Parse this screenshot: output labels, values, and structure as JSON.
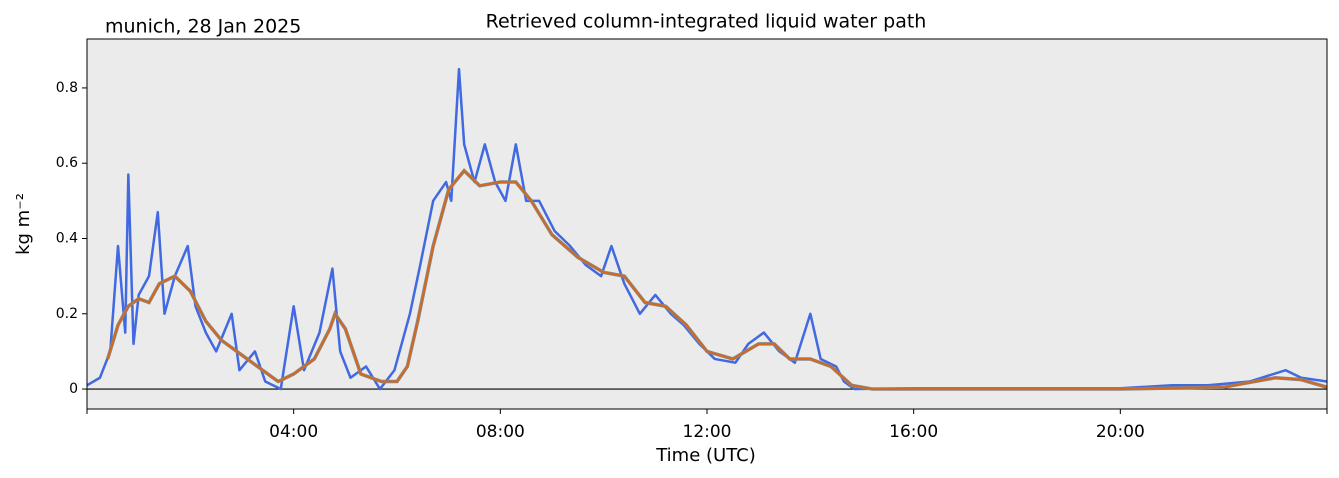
{
  "chart_data": {
    "type": "line",
    "title": "Retrieved column-integrated liquid water path",
    "annotation": "munich, 28 Jan 2025",
    "xlabel": "Time (UTC)",
    "ylabel": "kg m⁻²",
    "xlim": [
      0,
      24
    ],
    "xticks": [
      {
        "value": 0,
        "label": null
      },
      {
        "value": 4,
        "label": "04:00"
      },
      {
        "value": 8,
        "label": "08:00"
      },
      {
        "value": 12,
        "label": "12:00"
      },
      {
        "value": 16,
        "label": "16:00"
      },
      {
        "value": 20,
        "label": "20:00"
      },
      {
        "value": 24,
        "label": null
      }
    ],
    "ylim": [
      -0.053,
      0.93
    ],
    "yticks": [
      0.0,
      0.2,
      0.4,
      0.6,
      0.8
    ],
    "hline": 0,
    "background": "#ebebeb",
    "series": [
      {
        "color": "#4169e1",
        "x": [
          0,
          0.25,
          0.45,
          0.6,
          0.74,
          0.8,
          0.9,
          1.0,
          1.2,
          1.37,
          1.5,
          1.7,
          1.95,
          2.1,
          2.3,
          2.5,
          2.8,
          2.95,
          3.25,
          3.45,
          3.75,
          4.0,
          4.2,
          4.5,
          4.75,
          4.9,
          5.1,
          5.4,
          5.67,
          5.95,
          6.25,
          6.45,
          6.7,
          6.95,
          7.05,
          7.2,
          7.3,
          7.5,
          7.7,
          7.9,
          8.1,
          8.3,
          8.5,
          8.75,
          9.05,
          9.35,
          9.65,
          9.95,
          10.15,
          10.4,
          10.7,
          11.0,
          11.3,
          11.55,
          11.85,
          12.15,
          12.55,
          12.8,
          13.1,
          13.4,
          13.7,
          14.0,
          14.2,
          14.5,
          14.65,
          14.85,
          16,
          18,
          20,
          21.0,
          21.7,
          22.5,
          23.2,
          23.5,
          24.0
        ],
        "values": [
          0.01,
          0.03,
          0.1,
          0.38,
          0.15,
          0.57,
          0.12,
          0.25,
          0.3,
          0.47,
          0.2,
          0.3,
          0.38,
          0.22,
          0.15,
          0.1,
          0.2,
          0.05,
          0.1,
          0.02,
          0.0,
          0.22,
          0.05,
          0.15,
          0.32,
          0.1,
          0.03,
          0.06,
          0.0,
          0.05,
          0.2,
          0.33,
          0.5,
          0.55,
          0.5,
          0.85,
          0.65,
          0.55,
          0.65,
          0.55,
          0.5,
          0.65,
          0.5,
          0.5,
          0.42,
          0.38,
          0.33,
          0.3,
          0.38,
          0.28,
          0.2,
          0.25,
          0.2,
          0.17,
          0.12,
          0.08,
          0.07,
          0.12,
          0.15,
          0.1,
          0.07,
          0.2,
          0.08,
          0.06,
          0.02,
          0.0,
          0.002,
          0.002,
          0.002,
          0.01,
          0.01,
          0.02,
          0.05,
          0.03,
          0.02
        ]
      },
      {
        "color": "#d2691e",
        "x": [
          0.4,
          0.6,
          0.8,
          1.0,
          1.2,
          1.4,
          1.7,
          2.0,
          2.3,
          2.6,
          3.0,
          3.4,
          3.7,
          4.0,
          4.4,
          4.7,
          4.8,
          5.0,
          5.3,
          5.7,
          6.0,
          6.2,
          6.4,
          6.7,
          7.0,
          7.3,
          7.6,
          8.0,
          8.3,
          8.6,
          9.0,
          9.5,
          10.0,
          10.4,
          10.8,
          11.2,
          11.6,
          12.0,
          12.5,
          13.0,
          13.3,
          13.6,
          14.0,
          14.4,
          14.8,
          15.2,
          20.0,
          22.0,
          23.0,
          23.5,
          24.0
        ],
        "values": [
          0.08,
          0.17,
          0.22,
          0.24,
          0.23,
          0.28,
          0.3,
          0.26,
          0.18,
          0.13,
          0.09,
          0.05,
          0.02,
          0.04,
          0.08,
          0.16,
          0.2,
          0.16,
          0.04,
          0.02,
          0.02,
          0.06,
          0.18,
          0.38,
          0.53,
          0.58,
          0.54,
          0.55,
          0.55,
          0.5,
          0.41,
          0.35,
          0.31,
          0.3,
          0.23,
          0.22,
          0.17,
          0.1,
          0.08,
          0.12,
          0.12,
          0.08,
          0.08,
          0.06,
          0.01,
          0.0,
          0.0,
          0.005,
          0.03,
          0.025,
          0.005
        ]
      }
    ]
  }
}
